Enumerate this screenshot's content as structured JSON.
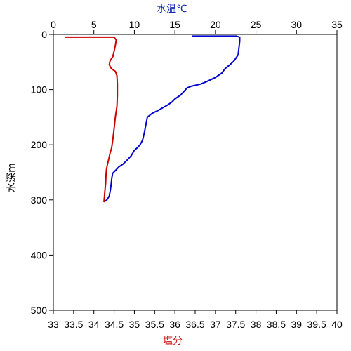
{
  "chart_data": {
    "type": "line",
    "title": "",
    "temperature_axis": {
      "label": "水温℃",
      "position": "top",
      "range": [
        0,
        35
      ],
      "ticks": [
        0,
        5,
        10,
        15,
        20,
        25,
        30,
        35
      ],
      "color": "#1428b4"
    },
    "salinity_axis": {
      "label": "塩分",
      "position": "bottom",
      "range": [
        33,
        40
      ],
      "ticks": [
        "33",
        "33.5",
        "34",
        "34.5",
        "35",
        "35.5",
        "36",
        "36.5",
        "37",
        "37.5",
        "38",
        "38.5",
        "39",
        "39.5",
        "40"
      ],
      "color": "#c81414"
    },
    "depth_axis": {
      "label": "水深m",
      "range": [
        0,
        500
      ],
      "inverted": true,
      "ticks": [
        0,
        100,
        200,
        300,
        400,
        500
      ]
    },
    "grid": false,
    "series": [
      {
        "quantity": "temperature",
        "axis": "temperature_axis",
        "color": "#0000cc",
        "points": [
          [
            17.2,
            3
          ],
          [
            21.0,
            3
          ],
          [
            22.6,
            3
          ],
          [
            23.0,
            5
          ],
          [
            23.0,
            12
          ],
          [
            22.9,
            25
          ],
          [
            22.8,
            37
          ],
          [
            22.3,
            48
          ],
          [
            21.8,
            55
          ],
          [
            21.2,
            62
          ],
          [
            20.8,
            70
          ],
          [
            20.0,
            78
          ],
          [
            19.0,
            85
          ],
          [
            18.2,
            90
          ],
          [
            17.0,
            94
          ],
          [
            16.5,
            97
          ],
          [
            16.2,
            102
          ],
          [
            15.7,
            110
          ],
          [
            15.0,
            117
          ],
          [
            14.6,
            123
          ],
          [
            14.1,
            128
          ],
          [
            13.5,
            133
          ],
          [
            12.9,
            138
          ],
          [
            12.2,
            143
          ],
          [
            11.6,
            150
          ],
          [
            11.4,
            165
          ],
          [
            11.2,
            180
          ],
          [
            11.0,
            192
          ],
          [
            10.7,
            200
          ],
          [
            10.4,
            205
          ],
          [
            10.0,
            210
          ],
          [
            9.6,
            220
          ],
          [
            9.1,
            228
          ],
          [
            8.6,
            235
          ],
          [
            8.1,
            240
          ],
          [
            7.7,
            246
          ],
          [
            7.3,
            252
          ],
          [
            7.2,
            262
          ],
          [
            7.1,
            275
          ],
          [
            7.0,
            285
          ],
          [
            6.9,
            293
          ],
          [
            6.6,
            300
          ],
          [
            6.3,
            303
          ]
        ]
      },
      {
        "quantity": "salinity",
        "axis": "salinity_axis",
        "color": "#cc0000",
        "points": [
          [
            33.3,
            5
          ],
          [
            34.5,
            5
          ],
          [
            34.55,
            10
          ],
          [
            34.53,
            20
          ],
          [
            34.5,
            30
          ],
          [
            34.47,
            40
          ],
          [
            34.4,
            48
          ],
          [
            34.38,
            55
          ],
          [
            34.43,
            62
          ],
          [
            34.53,
            67
          ],
          [
            34.57,
            75
          ],
          [
            34.58,
            90
          ],
          [
            34.58,
            110
          ],
          [
            34.57,
            130
          ],
          [
            34.53,
            150
          ],
          [
            34.5,
            170
          ],
          [
            34.47,
            190
          ],
          [
            34.44,
            205
          ],
          [
            34.4,
            215
          ],
          [
            34.37,
            225
          ],
          [
            34.33,
            237
          ],
          [
            34.31,
            245
          ],
          [
            34.3,
            255
          ],
          [
            34.29,
            270
          ],
          [
            34.27,
            285
          ],
          [
            34.26,
            295
          ],
          [
            34.25,
            303
          ]
        ]
      }
    ]
  }
}
